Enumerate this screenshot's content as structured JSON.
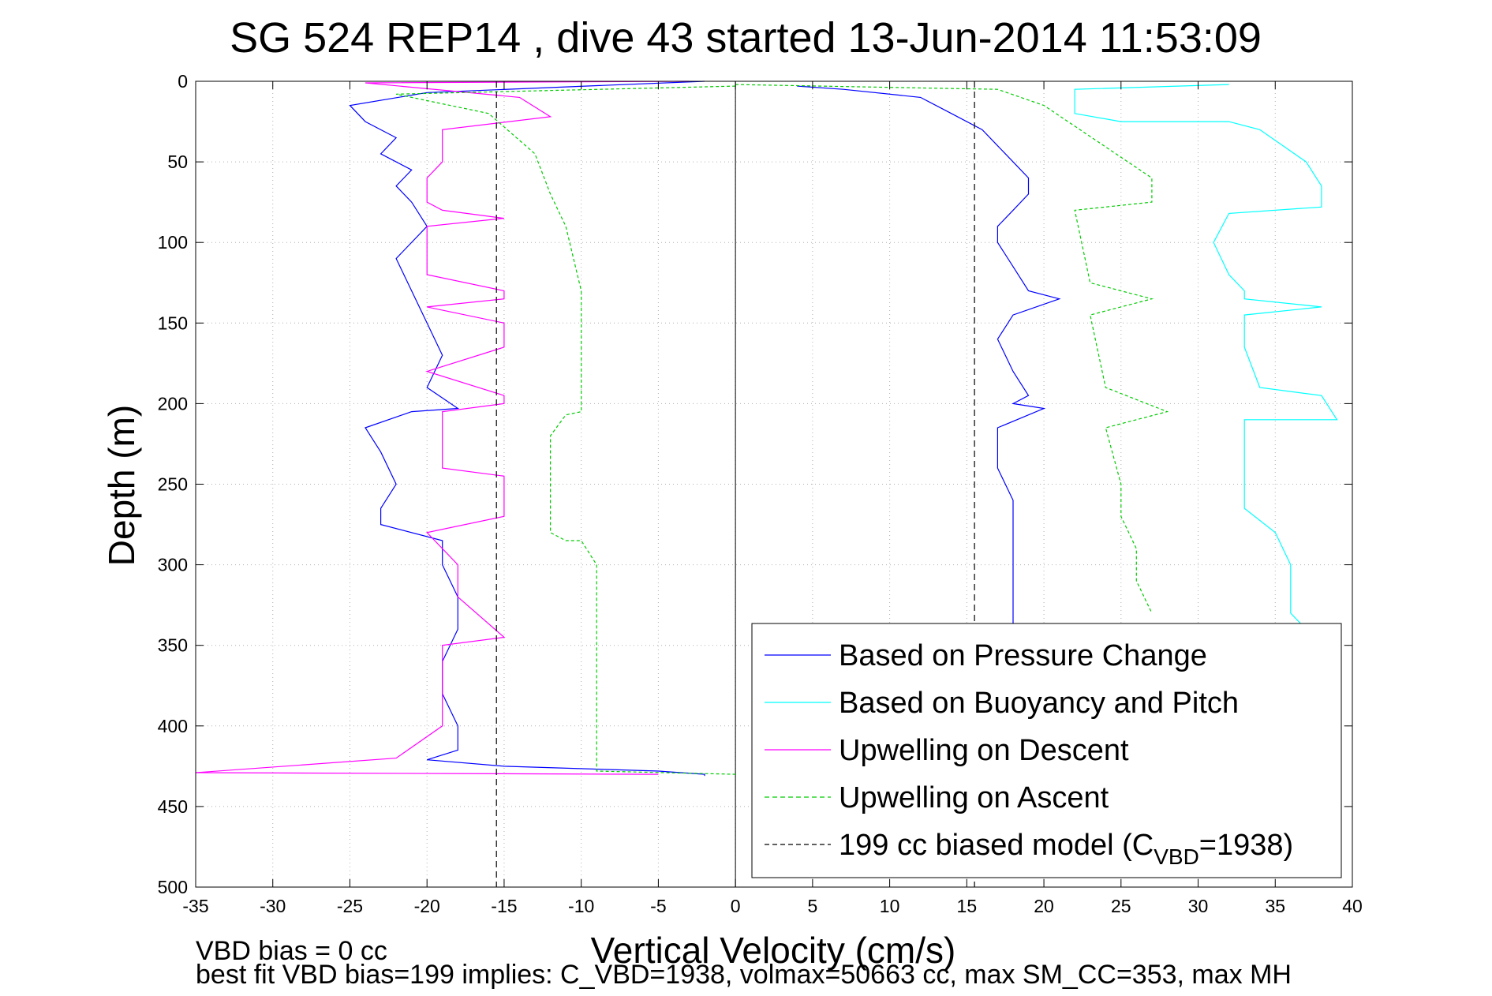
{
  "chart_data": {
    "type": "line",
    "title": "SG 524   REP14  , dive 43 started 13-Jun-2014 11:53:09",
    "xlabel": "Vertical Velocity (cm/s)",
    "ylabel": "Depth (m)",
    "xlim": [
      -35,
      40
    ],
    "ylim": [
      0,
      500
    ],
    "y_reversed": true,
    "grid": true,
    "legend_position": "lower-right",
    "xticks": [
      -35,
      -30,
      -25,
      -20,
      -15,
      -10,
      -5,
      0,
      5,
      10,
      15,
      20,
      25,
      30,
      35,
      40
    ],
    "xtick_labels": [
      "-35",
      "-30",
      "-25",
      "-20",
      "-15",
      "-10",
      "-5",
      "0",
      "5",
      "10",
      "15",
      "20",
      "25",
      "30",
      "35",
      "40"
    ],
    "yticks": [
      0,
      50,
      100,
      150,
      200,
      250,
      300,
      350,
      400,
      450,
      500
    ],
    "ytick_labels": [
      "0",
      "50",
      "100",
      "150",
      "200",
      "250",
      "300",
      "350",
      "400",
      "450",
      "500"
    ],
    "legend": [
      {
        "label": "Based on Pressure Change",
        "color": "#0000ff",
        "dash": "solid"
      },
      {
        "label": "Based on Buoyancy and Pitch",
        "color": "#00ffff",
        "dash": "solid"
      },
      {
        "label": "Upwelling on Descent",
        "color": "#ff00ff",
        "dash": "solid"
      },
      {
        "label": "Upwelling on Ascent",
        "color": "#00cc00",
        "dash": "dashed"
      },
      {
        "label": "199 cc biased model (C",
        "sub": "VBD",
        "suffix": "=1938)",
        "color": "#000000",
        "dash": "dashed"
      }
    ],
    "series": [
      {
        "name": "Based on Pressure Change (descent)",
        "color": "#0000ff",
        "x": [
          -2,
          -20,
          -25,
          -24,
          -22,
          -23,
          -21,
          -22,
          -21,
          -20,
          -22,
          -21,
          -20,
          -19,
          -20,
          -18,
          -21,
          -24,
          -23,
          -22,
          -23,
          -23,
          -19,
          -19,
          -18,
          -18,
          -19,
          -19,
          -18,
          -18,
          -20,
          -15,
          -5,
          -2,
          -2
        ],
        "y": [
          0,
          7,
          15,
          25,
          35,
          45,
          55,
          65,
          75,
          90,
          110,
          130,
          150,
          170,
          190,
          203,
          205,
          215,
          230,
          250,
          265,
          275,
          285,
          300,
          320,
          340,
          360,
          380,
          400,
          415,
          421,
          425,
          428,
          430,
          431
        ]
      },
      {
        "name": "Based on Pressure Change (ascent)",
        "color": "#0000ff",
        "x": [
          4,
          7,
          12,
          14,
          16,
          17,
          18,
          19,
          19,
          18,
          17,
          17,
          18,
          19,
          21,
          18,
          17,
          18,
          19,
          18,
          20,
          17,
          17,
          18,
          18,
          18,
          18,
          18
        ],
        "y": [
          3,
          5,
          10,
          20,
          30,
          40,
          50,
          60,
          70,
          80,
          90,
          100,
          115,
          130,
          135,
          145,
          160,
          180,
          195,
          200,
          203,
          215,
          240,
          260,
          280,
          300,
          320,
          340
        ]
      },
      {
        "name": "Based on Buoyancy and Pitch",
        "color": "#00ffff",
        "x": [
          32,
          22,
          22,
          25,
          32,
          34,
          37,
          38,
          38,
          32,
          31,
          32,
          33,
          33,
          38,
          33,
          33,
          34,
          38,
          39,
          33,
          33,
          33,
          33,
          35,
          36,
          36,
          36,
          37
        ],
        "y": [
          2,
          5,
          20,
          25,
          25,
          30,
          50,
          65,
          78,
          82,
          100,
          120,
          130,
          135,
          140,
          145,
          165,
          190,
          195,
          210,
          210,
          230,
          255,
          265,
          280,
          300,
          320,
          330,
          340
        ]
      },
      {
        "name": "Upwelling on Descent",
        "color": "#ff00ff",
        "x": [
          -3,
          -24,
          -14,
          -12,
          -19,
          -19,
          -20,
          -20,
          -19,
          -15,
          -20,
          -20,
          -15,
          -15,
          -20,
          -15,
          -15,
          -20,
          -15,
          -15,
          -19,
          -19,
          -15,
          -15,
          -20,
          -18,
          -18,
          -15,
          -19,
          -19,
          -19,
          -22,
          -35,
          -5
        ],
        "y": [
          0,
          1,
          10,
          22,
          30,
          50,
          60,
          75,
          80,
          85,
          90,
          120,
          130,
          135,
          140,
          150,
          165,
          180,
          195,
          200,
          205,
          240,
          245,
          270,
          280,
          300,
          320,
          345,
          350,
          380,
          400,
          420,
          429,
          430
        ]
      },
      {
        "name": "Upwelling on Ascent",
        "color": "#00cc00",
        "x": [
          0,
          -22,
          -16,
          -13,
          -12,
          -11,
          -10,
          -10,
          -11,
          -12,
          -12,
          -11,
          -10,
          -9,
          -9,
          -9,
          -9,
          -9,
          -9,
          0
        ],
        "y": [
          3,
          8,
          20,
          45,
          70,
          90,
          130,
          205,
          207,
          220,
          280,
          285,
          285,
          300,
          340,
          380,
          400,
          425,
          428,
          430
        ]
      },
      {
        "name": "Upwelling on Ascent (ascent)",
        "color": "#00cc00",
        "x": [
          0,
          17,
          20,
          27,
          27,
          22,
          23,
          27,
          23,
          24,
          28,
          24,
          25,
          25,
          26,
          26,
          27
        ],
        "y": [
          2,
          5,
          15,
          60,
          75,
          80,
          125,
          135,
          145,
          190,
          205,
          215,
          250,
          270,
          290,
          310,
          330
        ]
      },
      {
        "name": "199 cc biased model",
        "color": "#000000",
        "dashed": true,
        "x": [
          -15.5,
          -15.5
        ],
        "y": [
          0,
          500
        ]
      },
      {
        "name": "199 cc biased model (ascent)",
        "color": "#000000",
        "dashed": true,
        "x": [
          15.5,
          15.5
        ],
        "y": [
          0,
          500
        ]
      }
    ]
  },
  "footer": {
    "line1": "VBD bias = 0 cc",
    "line2": "best fit VBD bias=199 implies: C_VBD=1938, volmax=50663 cc, max SM_CC=353, max MH"
  }
}
